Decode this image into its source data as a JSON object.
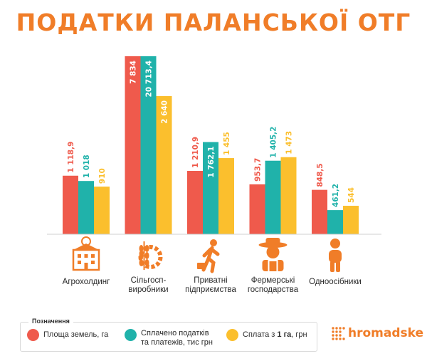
{
  "title": "ПОДАТКИ ПАЛАНСЬКОЇ ОТГ",
  "colors": {
    "accent": "#f07d28",
    "red": "#ef5a4c",
    "teal": "#20b2aa",
    "yellow": "#fbbf2d",
    "icon": "#f07d28"
  },
  "chart_data": {
    "type": "bar",
    "title": "ПОДАТКИ ПАЛАНСЬКОЇ ОТГ",
    "categories": [
      "Агрохолдинг",
      "Сільгосп- виробники",
      "Приватні підприємства",
      "Фермерські господарства",
      "Одноосібники"
    ],
    "series": [
      {
        "name": "Площа земель, га",
        "values": [
          1118.9,
          7834,
          1210.9,
          953.7,
          848.5
        ],
        "labels": [
          "1 118,9",
          "7 834",
          "1 210,9",
          "953,7",
          "848,5"
        ]
      },
      {
        "name": "Сплачено податків та платежів, тис грн",
        "values": [
          1018,
          20713.4,
          1762.1,
          1405.2,
          461.2
        ],
        "labels": [
          "1 018",
          "20 713,4",
          "1 762,1",
          "1 405,2",
          "461,2"
        ]
      },
      {
        "name": "Сплата з 1 га, грн",
        "values": [
          910,
          2640,
          1455,
          1473,
          544
        ],
        "labels": [
          "910",
          "2 640",
          "1 455",
          "1 473",
          "544"
        ]
      }
    ],
    "grid": false,
    "legend_position": "bottom"
  },
  "category_icons": [
    "building-icon",
    "wheat-gear-icon",
    "worker-with-briefcase-icon",
    "farmer-icon",
    "person-icon"
  ],
  "legend": {
    "title": "Позначення",
    "item1": "Площа земель, га",
    "item2_line1": "Сплачено податків",
    "item2_line2": "та платежів, тис грн",
    "item3_pre": "Сплата з ",
    "item3_bold": "1 га",
    "item3_post": ", грн"
  },
  "brand": {
    "name": "hromadske",
    "icon": "dots-logo-icon"
  }
}
